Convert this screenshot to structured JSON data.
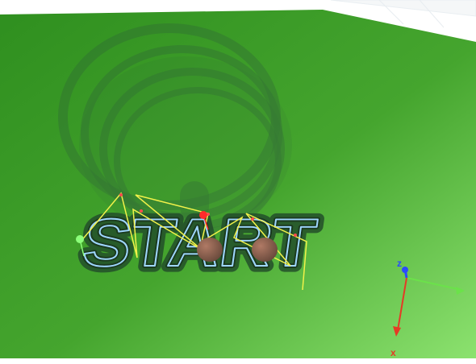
{
  "scene": {
    "text_label": "START",
    "background_color": "#ffffff",
    "ground_colors": {
      "dark": "#2f8f1f",
      "mid": "#4fae36",
      "light": "#8ce26f"
    },
    "ghost_tool_color": "#2e5b3b",
    "path_color": "#f2f24a",
    "engrave_outline_color": "#9fd7ff",
    "shadow_color": "#234f2a"
  },
  "markers": {
    "start_marker_color": "#8cff7a",
    "current_marker_color": "#ff2a2a",
    "pivot_color": "#8a5d4b"
  },
  "axes": {
    "x_label": "x",
    "y_label": "y",
    "z_label": "z",
    "x_color": "#e53a25",
    "y_color": "#6be24a",
    "z_color": "#2a4bff"
  }
}
